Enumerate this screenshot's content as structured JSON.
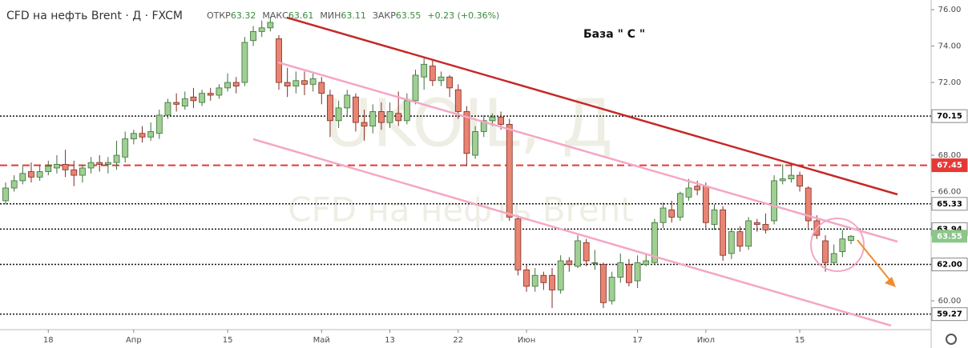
{
  "chart_data": {
    "type": "candlestick",
    "title": "CFD на нефть Brent · Д · FXCM",
    "ohlc_header": [
      {
        "label": "ОТКР",
        "value": 63.32
      },
      {
        "label": "МАКС",
        "value": 63.61
      },
      {
        "label": "МИН",
        "value": 63.11
      },
      {
        "label": "ЗАКР",
        "value": 63.55
      }
    ],
    "change": "+0.23 (+0.36%)",
    "annotation": "База \" С \"",
    "watermark": "UKOIL, Д",
    "watermark_sub": "CFD на нефть Brent",
    "colors": {
      "up": "#9fcf92",
      "up_edge": "#3d6f3a",
      "down": "#e98472",
      "down_edge": "#7e2c23"
    },
    "categories": [
      null,
      null,
      null,
      null,
      null,
      "18",
      null,
      null,
      null,
      null,
      null,
      null,
      null,
      null,
      null,
      "Апр",
      null,
      null,
      null,
      null,
      null,
      null,
      null,
      null,
      null,
      null,
      "15",
      null,
      null,
      null,
      null,
      null,
      null,
      null,
      null,
      null,
      null,
      "Май",
      null,
      null,
      null,
      null,
      null,
      null,
      null,
      "13",
      null,
      null,
      null,
      null,
      null,
      null,
      null,
      "22",
      null,
      null,
      null,
      null,
      null,
      null,
      null,
      "Июн",
      null,
      null,
      null,
      null,
      null,
      null,
      null,
      null,
      null,
      null,
      null,
      null,
      "17",
      null,
      null,
      null,
      null,
      null,
      null,
      null,
      "Июл",
      null,
      null,
      null,
      null,
      null,
      null,
      null,
      null,
      null,
      null,
      "15",
      null,
      null,
      null,
      null,
      null,
      null
    ],
    "candles": [
      {
        "o": 65.5,
        "h": 66.5,
        "l": 65.3,
        "c": 66.2
      },
      {
        "o": 66.2,
        "h": 66.9,
        "l": 66.0,
        "c": 66.6
      },
      {
        "o": 66.6,
        "h": 67.4,
        "l": 66.4,
        "c": 67.0
      },
      {
        "o": 67.1,
        "h": 67.6,
        "l": 66.5,
        "c": 66.8
      },
      {
        "o": 66.8,
        "h": 67.5,
        "l": 66.6,
        "c": 67.1
      },
      {
        "o": 67.1,
        "h": 67.7,
        "l": 66.9,
        "c": 67.4
      },
      {
        "o": 67.3,
        "h": 68.0,
        "l": 67.0,
        "c": 67.5
      },
      {
        "o": 67.5,
        "h": 68.3,
        "l": 66.8,
        "c": 67.2
      },
      {
        "o": 67.2,
        "h": 67.7,
        "l": 66.3,
        "c": 66.9
      },
      {
        "o": 66.9,
        "h": 67.5,
        "l": 66.5,
        "c": 67.3
      },
      {
        "o": 67.3,
        "h": 67.9,
        "l": 67.0,
        "c": 67.6
      },
      {
        "o": 67.6,
        "h": 68.0,
        "l": 67.1,
        "c": 67.5
      },
      {
        "o": 67.5,
        "h": 67.9,
        "l": 67.0,
        "c": 67.6
      },
      {
        "o": 67.6,
        "h": 68.8,
        "l": 67.2,
        "c": 68.0
      },
      {
        "o": 67.9,
        "h": 69.3,
        "l": 67.6,
        "c": 68.9
      },
      {
        "o": 68.9,
        "h": 69.4,
        "l": 68.6,
        "c": 69.2
      },
      {
        "o": 69.2,
        "h": 69.6,
        "l": 68.7,
        "c": 69.0
      },
      {
        "o": 69.0,
        "h": 69.8,
        "l": 68.8,
        "c": 69.3
      },
      {
        "o": 69.2,
        "h": 70.5,
        "l": 68.9,
        "c": 70.2
      },
      {
        "o": 70.2,
        "h": 71.1,
        "l": 70.0,
        "c": 70.9
      },
      {
        "o": 70.9,
        "h": 71.4,
        "l": 70.4,
        "c": 70.8
      },
      {
        "o": 70.7,
        "h": 71.5,
        "l": 70.5,
        "c": 71.1
      },
      {
        "o": 71.2,
        "h": 71.7,
        "l": 70.6,
        "c": 71.0
      },
      {
        "o": 70.9,
        "h": 71.6,
        "l": 70.7,
        "c": 71.4
      },
      {
        "o": 71.4,
        "h": 71.7,
        "l": 71.0,
        "c": 71.3
      },
      {
        "o": 71.3,
        "h": 71.9,
        "l": 71.1,
        "c": 71.7
      },
      {
        "o": 71.7,
        "h": 72.5,
        "l": 71.5,
        "c": 72.0
      },
      {
        "o": 72.0,
        "h": 72.3,
        "l": 71.4,
        "c": 71.8
      },
      {
        "o": 72.0,
        "h": 74.5,
        "l": 71.8,
        "c": 74.2
      },
      {
        "o": 74.3,
        "h": 75.1,
        "l": 74.0,
        "c": 74.8
      },
      {
        "o": 74.8,
        "h": 75.4,
        "l": 74.5,
        "c": 75.0
      },
      {
        "o": 75.0,
        "h": 75.6,
        "l": 74.8,
        "c": 75.3
      },
      {
        "o": 74.4,
        "h": 74.6,
        "l": 71.6,
        "c": 72.0
      },
      {
        "o": 72.0,
        "h": 72.8,
        "l": 71.2,
        "c": 71.8
      },
      {
        "o": 71.8,
        "h": 72.6,
        "l": 71.4,
        "c": 72.1
      },
      {
        "o": 72.1,
        "h": 72.6,
        "l": 71.3,
        "c": 71.9
      },
      {
        "o": 71.9,
        "h": 72.5,
        "l": 71.5,
        "c": 72.2
      },
      {
        "o": 72.0,
        "h": 72.3,
        "l": 70.8,
        "c": 71.4
      },
      {
        "o": 71.3,
        "h": 71.6,
        "l": 69.0,
        "c": 69.9
      },
      {
        "o": 69.9,
        "h": 71.0,
        "l": 69.5,
        "c": 70.6
      },
      {
        "o": 70.6,
        "h": 71.6,
        "l": 70.2,
        "c": 71.3
      },
      {
        "o": 71.2,
        "h": 71.4,
        "l": 69.3,
        "c": 69.8
      },
      {
        "o": 69.8,
        "h": 70.5,
        "l": 68.8,
        "c": 69.6
      },
      {
        "o": 69.6,
        "h": 70.8,
        "l": 69.2,
        "c": 70.4
      },
      {
        "o": 70.4,
        "h": 70.9,
        "l": 69.4,
        "c": 69.8
      },
      {
        "o": 69.8,
        "h": 70.9,
        "l": 69.5,
        "c": 70.4
      },
      {
        "o": 70.3,
        "h": 71.5,
        "l": 69.6,
        "c": 69.9
      },
      {
        "o": 69.9,
        "h": 71.4,
        "l": 69.7,
        "c": 71.0
      },
      {
        "o": 71.0,
        "h": 72.7,
        "l": 70.8,
        "c": 72.4
      },
      {
        "o": 72.3,
        "h": 73.4,
        "l": 71.6,
        "c": 73.0
      },
      {
        "o": 72.9,
        "h": 73.3,
        "l": 71.8,
        "c": 72.1
      },
      {
        "o": 72.1,
        "h": 72.6,
        "l": 71.8,
        "c": 72.3
      },
      {
        "o": 72.3,
        "h": 72.4,
        "l": 71.2,
        "c": 71.7
      },
      {
        "o": 71.6,
        "h": 71.9,
        "l": 70.0,
        "c": 70.4
      },
      {
        "o": 70.4,
        "h": 70.7,
        "l": 67.4,
        "c": 68.1
      },
      {
        "o": 68.0,
        "h": 69.6,
        "l": 67.8,
        "c": 69.3
      },
      {
        "o": 69.3,
        "h": 70.2,
        "l": 69.0,
        "c": 69.9
      },
      {
        "o": 69.9,
        "h": 70.3,
        "l": 69.6,
        "c": 70.1
      },
      {
        "o": 70.1,
        "h": 70.4,
        "l": 69.4,
        "c": 69.7
      },
      {
        "o": 69.7,
        "h": 70.0,
        "l": 64.4,
        "c": 64.6
      },
      {
        "o": 64.5,
        "h": 64.7,
        "l": 61.4,
        "c": 61.7
      },
      {
        "o": 61.7,
        "h": 62.0,
        "l": 60.5,
        "c": 60.8
      },
      {
        "o": 60.8,
        "h": 61.8,
        "l": 60.5,
        "c": 61.4
      },
      {
        "o": 61.4,
        "h": 61.6,
        "l": 60.6,
        "c": 61.0
      },
      {
        "o": 61.4,
        "h": 61.8,
        "l": 59.6,
        "c": 60.6
      },
      {
        "o": 60.6,
        "h": 62.5,
        "l": 60.4,
        "c": 62.2
      },
      {
        "o": 62.2,
        "h": 62.4,
        "l": 61.6,
        "c": 62.0
      },
      {
        "o": 61.9,
        "h": 63.6,
        "l": 61.8,
        "c": 63.3
      },
      {
        "o": 63.2,
        "h": 63.4,
        "l": 61.9,
        "c": 62.2
      },
      {
        "o": 62.1,
        "h": 62.8,
        "l": 61.7,
        "c": 62.1
      },
      {
        "o": 62.0,
        "h": 62.1,
        "l": 59.6,
        "c": 59.9
      },
      {
        "o": 60.0,
        "h": 61.6,
        "l": 59.8,
        "c": 61.3
      },
      {
        "o": 61.3,
        "h": 62.6,
        "l": 61.0,
        "c": 62.1
      },
      {
        "o": 62.0,
        "h": 62.3,
        "l": 60.8,
        "c": 61.0
      },
      {
        "o": 61.1,
        "h": 62.5,
        "l": 60.7,
        "c": 62.1
      },
      {
        "o": 62.0,
        "h": 62.6,
        "l": 61.9,
        "c": 62.2
      },
      {
        "o": 62.1,
        "h": 64.5,
        "l": 62.0,
        "c": 64.3
      },
      {
        "o": 64.3,
        "h": 65.4,
        "l": 64.0,
        "c": 65.1
      },
      {
        "o": 65.0,
        "h": 65.5,
        "l": 64.3,
        "c": 64.6
      },
      {
        "o": 64.6,
        "h": 66.0,
        "l": 64.4,
        "c": 65.9
      },
      {
        "o": 65.7,
        "h": 66.7,
        "l": 65.5,
        "c": 66.2
      },
      {
        "o": 66.3,
        "h": 66.6,
        "l": 65.8,
        "c": 66.1
      },
      {
        "o": 66.3,
        "h": 66.5,
        "l": 64.0,
        "c": 64.3
      },
      {
        "o": 64.2,
        "h": 65.3,
        "l": 63.9,
        "c": 65.0
      },
      {
        "o": 65.0,
        "h": 65.2,
        "l": 62.2,
        "c": 62.5
      },
      {
        "o": 62.6,
        "h": 64.0,
        "l": 62.3,
        "c": 63.8
      },
      {
        "o": 63.8,
        "h": 64.1,
        "l": 62.7,
        "c": 63.0
      },
      {
        "o": 63.0,
        "h": 64.6,
        "l": 62.8,
        "c": 64.4
      },
      {
        "o": 64.3,
        "h": 64.5,
        "l": 63.8,
        "c": 64.2
      },
      {
        "o": 64.2,
        "h": 64.8,
        "l": 63.7,
        "c": 63.9
      },
      {
        "o": 64.4,
        "h": 66.9,
        "l": 64.2,
        "c": 66.6
      },
      {
        "o": 66.6,
        "h": 67.5,
        "l": 66.4,
        "c": 66.7
      },
      {
        "o": 66.7,
        "h": 67.5,
        "l": 66.5,
        "c": 66.9
      },
      {
        "o": 66.9,
        "h": 67.1,
        "l": 66.0,
        "c": 66.3
      },
      {
        "o": 66.2,
        "h": 66.3,
        "l": 64.0,
        "c": 64.4
      },
      {
        "o": 64.4,
        "h": 64.7,
        "l": 63.4,
        "c": 63.6
      },
      {
        "o": 63.3,
        "h": 63.6,
        "l": 61.6,
        "c": 62.1
      },
      {
        "o": 62.1,
        "h": 63.1,
        "l": 62.0,
        "c": 62.6
      },
      {
        "o": 62.7,
        "h": 63.9,
        "l": 62.4,
        "c": 63.4
      },
      {
        "o": 63.32,
        "h": 63.61,
        "l": 63.11,
        "c": 63.55
      }
    ],
    "ylim": [
      58.42,
      76.53
    ],
    "yticks": [
      {
        "value": 76,
        "label": "76.00"
      },
      {
        "value": 74,
        "label": "74.00"
      },
      {
        "value": 72,
        "label": "72.00"
      },
      {
        "value": 70,
        "label": "70.00"
      },
      {
        "value": 68,
        "label": "68.00"
      },
      {
        "value": 66,
        "label": "66.00"
      },
      {
        "value": 64,
        "label": "64.00"
      },
      {
        "value": 62,
        "label": "62.00"
      },
      {
        "value": 60,
        "label": "60.00"
      }
    ],
    "levels": [
      {
        "value": 70.15,
        "color": "#111111",
        "style": "dotted"
      },
      {
        "value": 67.45,
        "color": "#e53935",
        "style": "dashed"
      },
      {
        "value": 65.33,
        "color": "#111111",
        "style": "dotted"
      },
      {
        "value": 63.94,
        "color": "#111111",
        "style": "dotted"
      },
      {
        "value": 62,
        "label": "62.00",
        "color": "#111111",
        "style": "dotted"
      },
      {
        "value": 59.27,
        "color": "#111111",
        "style": "dotted"
      }
    ],
    "last_price_color": "#8cc68a"
  }
}
